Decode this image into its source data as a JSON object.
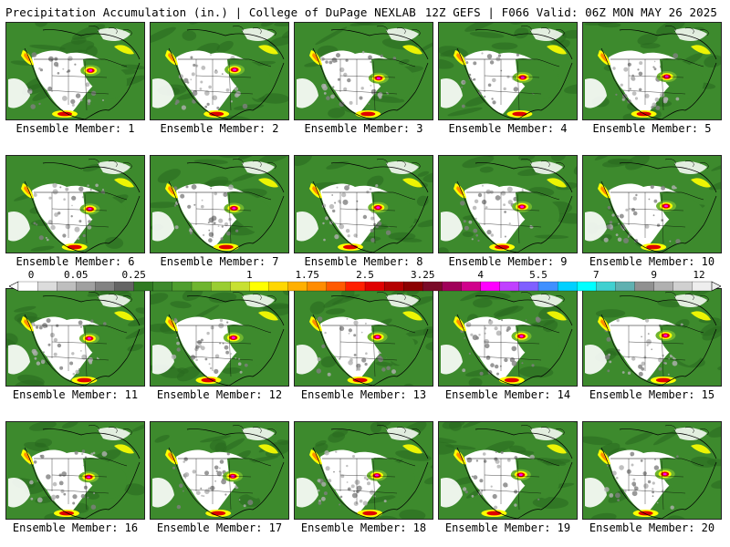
{
  "header": {
    "title_left": "Precipitation Accumulation (in.) | College of DuPage NEXLAB",
    "title_right": "12Z GEFS | F066 Valid: 06Z MON MAY 26 2025"
  },
  "ensemble_prefix": "Ensemble Member:",
  "members": [
    {
      "id": "1",
      "caption": "Ensemble Member: 1"
    },
    {
      "id": "2",
      "caption": "Ensemble Member: 2"
    },
    {
      "id": "3",
      "caption": "Ensemble Member: 3"
    },
    {
      "id": "4",
      "caption": "Ensemble Member: 4"
    },
    {
      "id": "5",
      "caption": "Ensemble Member: 5"
    },
    {
      "id": "6",
      "caption": "Ensemble Member: 6"
    },
    {
      "id": "7",
      "caption": "Ensemble Member: 7"
    },
    {
      "id": "8",
      "caption": "Ensemble Member: 8"
    },
    {
      "id": "9",
      "caption": "Ensemble Member: 9"
    },
    {
      "id": "10",
      "caption": "Ensemble Member: 10"
    },
    {
      "id": "11",
      "caption": "Ensemble Member: 11"
    },
    {
      "id": "12",
      "caption": "Ensemble Member: 12"
    },
    {
      "id": "13",
      "caption": "Ensemble Member: 13"
    },
    {
      "id": "14",
      "caption": "Ensemble Member: 14"
    },
    {
      "id": "15",
      "caption": "Ensemble Member: 15"
    },
    {
      "id": "16",
      "caption": "Ensemble Member: 16"
    },
    {
      "id": "17",
      "caption": "Ensemble Member: 17"
    },
    {
      "id": "18",
      "caption": "Ensemble Member: 18"
    },
    {
      "id": "19",
      "caption": "Ensemble Member: 19"
    },
    {
      "id": "20",
      "caption": "Ensemble Member: 20"
    }
  ],
  "colorbar": {
    "labels": [
      "0",
      "0.05",
      "0.25",
      "1",
      "1.75",
      "2.5",
      "3.25",
      "4",
      "5.5",
      "7",
      "9",
      "12"
    ],
    "colors": [
      "#ffffff",
      "#dcdcdc",
      "#bebebe",
      "#a0a0a0",
      "#828282",
      "#646464",
      "#2f7a22",
      "#3d8a2d",
      "#4f9e2f",
      "#6fb52f",
      "#9acd32",
      "#c8e032",
      "#ffff00",
      "#ffd700",
      "#ffb000",
      "#ff8c00",
      "#ff5a00",
      "#ff2000",
      "#e00000",
      "#b40000",
      "#8b0000",
      "#7a0a28",
      "#a0005a",
      "#d0008c",
      "#ff00ff",
      "#c040ff",
      "#8060ff",
      "#4090ff",
      "#00d0ff",
      "#00ffff",
      "#40d0d0",
      "#60b0b0",
      "#909090",
      "#b0b0b0",
      "#d0d0d0",
      "#eeeeee"
    ],
    "label_color_index": [
      0,
      3,
      6,
      12,
      15,
      18,
      21,
      24,
      27,
      30,
      33,
      36
    ]
  },
  "palette": {
    "green": "#3d8a2d",
    "dark_green": "#2a6b1f",
    "light_green": "#6fb52f",
    "yellow": "#ffff00",
    "orange": "#ff8c00",
    "red": "#e00000",
    "magenta": "#ff00ff",
    "white": "#ffffff",
    "gray": "#b0b0b0",
    "dark_gray": "#808080"
  }
}
